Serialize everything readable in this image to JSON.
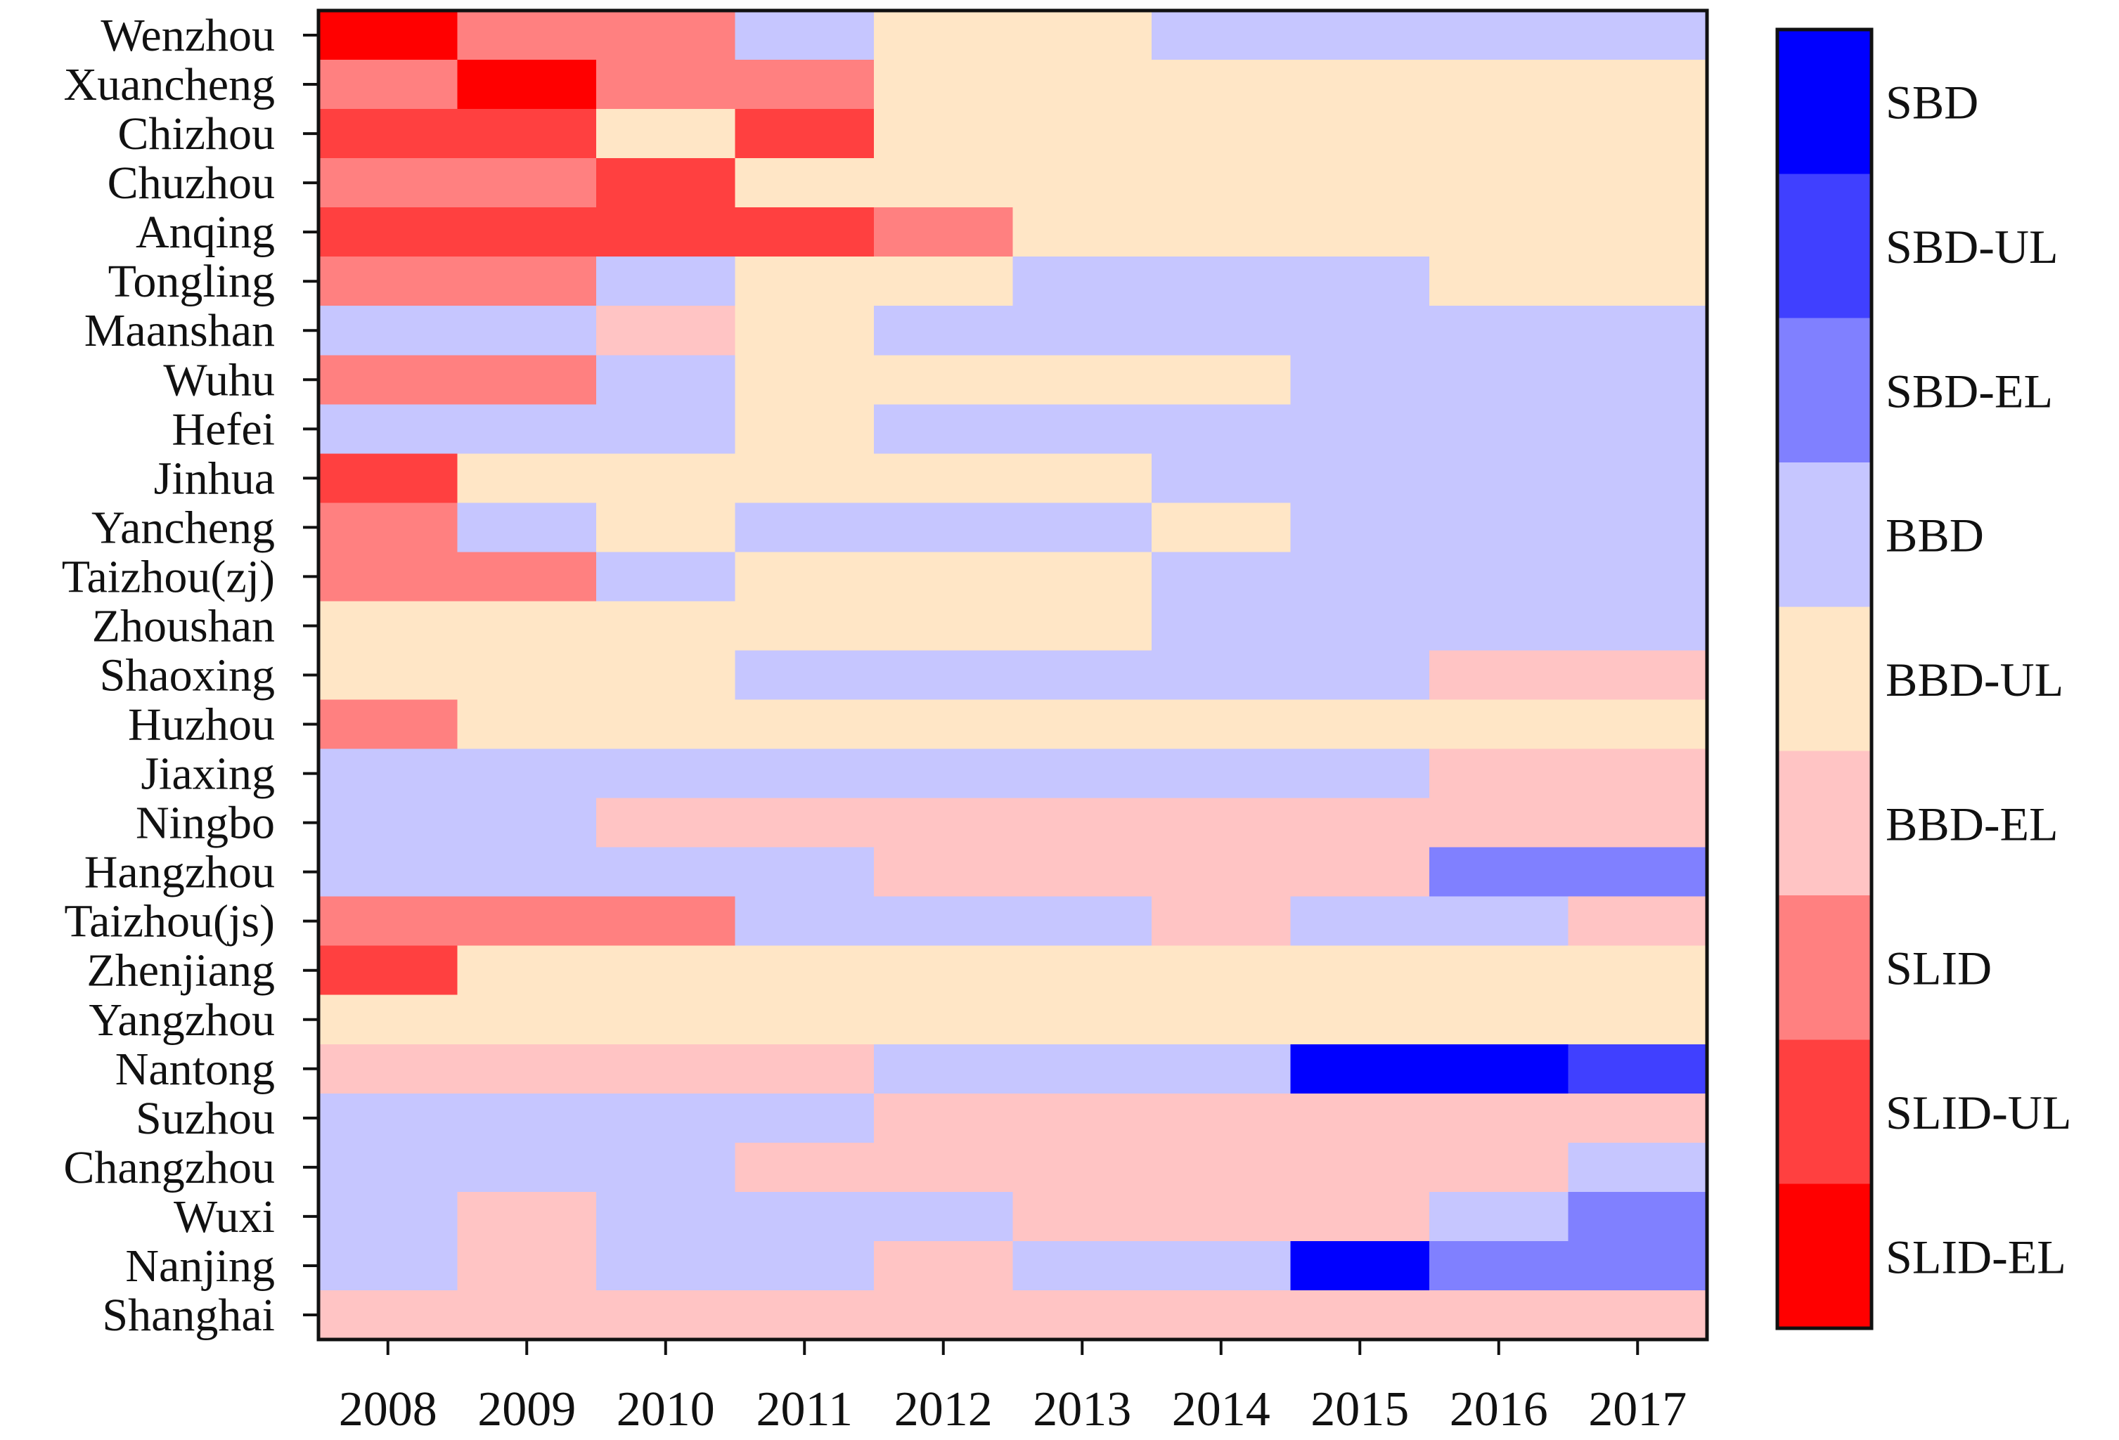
{
  "chart_data": {
    "type": "heatmap",
    "title": "",
    "xlabel": "",
    "ylabel": "",
    "x": [
      "2008",
      "2009",
      "2010",
      "2011",
      "2012",
      "2013",
      "2014",
      "2015",
      "2016",
      "2017"
    ],
    "y": [
      "Wenzhou",
      "Xuancheng",
      "Chizhou",
      "Chuzhou",
      "Anqing",
      "Tongling",
      "Maanshan",
      "Wuhu",
      "Hefei",
      "Jinhua",
      "Yancheng",
      "Taizhou(zj)",
      "Zhoushan",
      "Shaoxing",
      "Huzhou",
      "Jiaxing",
      "Ningbo",
      "Hangzhou",
      "Taizhou(js)",
      "Zhenjiang",
      "Yangzhou",
      "Nantong",
      "Suzhou",
      "Changzhou",
      "Wuxi",
      "Nanjing",
      "Shanghai"
    ],
    "categories": [
      "SBD",
      "SBD-UL",
      "SBD-EL",
      "BBD",
      "BBD-UL",
      "BBD-EL",
      "SLID",
      "SLID-UL",
      "SLID-EL"
    ],
    "colors": {
      "SBD": "#0000ff",
      "SBD-UL": "#4040ff",
      "SBD-EL": "#8080ff",
      "BBD": "#c6c6ff",
      "BBD-UL": "#ffe6c6",
      "BBD-EL": "#ffc4c4",
      "SLID": "#ff8080",
      "SLID-UL": "#ff4040",
      "SLID-EL": "#ff0000"
    },
    "values": [
      [
        "SLID-EL",
        "SLID",
        "SLID",
        "BBD",
        "BBD-UL",
        "BBD-UL",
        "BBD",
        "BBD",
        "BBD",
        "BBD"
      ],
      [
        "SLID",
        "SLID-EL",
        "SLID",
        "SLID",
        "BBD-UL",
        "BBD-UL",
        "BBD-UL",
        "BBD-UL",
        "BBD-UL",
        "BBD-UL"
      ],
      [
        "SLID-UL",
        "SLID-UL",
        "BBD-UL",
        "SLID-UL",
        "BBD-UL",
        "BBD-UL",
        "BBD-UL",
        "BBD-UL",
        "BBD-UL",
        "BBD-UL"
      ],
      [
        "SLID",
        "SLID",
        "SLID-UL",
        "BBD-UL",
        "BBD-UL",
        "BBD-UL",
        "BBD-UL",
        "BBD-UL",
        "BBD-UL",
        "BBD-UL"
      ],
      [
        "SLID-UL",
        "SLID-UL",
        "SLID-UL",
        "SLID-UL",
        "SLID",
        "BBD-UL",
        "BBD-UL",
        "BBD-UL",
        "BBD-UL",
        "BBD-UL"
      ],
      [
        "SLID",
        "SLID",
        "BBD",
        "BBD-UL",
        "BBD-UL",
        "BBD",
        "BBD",
        "BBD",
        "BBD-UL",
        "BBD-UL"
      ],
      [
        "BBD",
        "BBD",
        "BBD-EL",
        "BBD-UL",
        "BBD",
        "BBD",
        "BBD",
        "BBD",
        "BBD",
        "BBD"
      ],
      [
        "SLID",
        "SLID",
        "BBD",
        "BBD-UL",
        "BBD-UL",
        "BBD-UL",
        "BBD-UL",
        "BBD",
        "BBD",
        "BBD"
      ],
      [
        "BBD",
        "BBD",
        "BBD",
        "BBD-UL",
        "BBD",
        "BBD",
        "BBD",
        "BBD",
        "BBD",
        "BBD"
      ],
      [
        "SLID-UL",
        "BBD-UL",
        "BBD-UL",
        "BBD-UL",
        "BBD-UL",
        "BBD-UL",
        "BBD",
        "BBD",
        "BBD",
        "BBD"
      ],
      [
        "SLID",
        "BBD",
        "BBD-UL",
        "BBD",
        "BBD",
        "BBD",
        "BBD-UL",
        "BBD",
        "BBD",
        "BBD"
      ],
      [
        "SLID",
        "SLID",
        "BBD",
        "BBD-UL",
        "BBD-UL",
        "BBD-UL",
        "BBD",
        "BBD",
        "BBD",
        "BBD"
      ],
      [
        "BBD-UL",
        "BBD-UL",
        "BBD-UL",
        "BBD-UL",
        "BBD-UL",
        "BBD-UL",
        "BBD",
        "BBD",
        "BBD",
        "BBD"
      ],
      [
        "BBD-UL",
        "BBD-UL",
        "BBD-UL",
        "BBD",
        "BBD",
        "BBD",
        "BBD",
        "BBD",
        "BBD-EL",
        "BBD-EL"
      ],
      [
        "SLID",
        "BBD-UL",
        "BBD-UL",
        "BBD-UL",
        "BBD-UL",
        "BBD-UL",
        "BBD-UL",
        "BBD-UL",
        "BBD-UL",
        "BBD-UL"
      ],
      [
        "BBD",
        "BBD",
        "BBD",
        "BBD",
        "BBD",
        "BBD",
        "BBD",
        "BBD",
        "BBD-EL",
        "BBD-EL"
      ],
      [
        "BBD",
        "BBD",
        "BBD-EL",
        "BBD-EL",
        "BBD-EL",
        "BBD-EL",
        "BBD-EL",
        "BBD-EL",
        "BBD-EL",
        "BBD-EL"
      ],
      [
        "BBD",
        "BBD",
        "BBD",
        "BBD",
        "BBD-EL",
        "BBD-EL",
        "BBD-EL",
        "BBD-EL",
        "SBD-EL",
        "SBD-EL"
      ],
      [
        "SLID",
        "SLID",
        "SLID",
        "BBD",
        "BBD",
        "BBD",
        "BBD-EL",
        "BBD",
        "BBD",
        "BBD-EL"
      ],
      [
        "SLID-UL",
        "BBD-UL",
        "BBD-UL",
        "BBD-UL",
        "BBD-UL",
        "BBD-UL",
        "BBD-UL",
        "BBD-UL",
        "BBD-UL",
        "BBD-UL"
      ],
      [
        "BBD-UL",
        "BBD-UL",
        "BBD-UL",
        "BBD-UL",
        "BBD-UL",
        "BBD-UL",
        "BBD-UL",
        "BBD-UL",
        "BBD-UL",
        "BBD-UL"
      ],
      [
        "BBD-EL",
        "BBD-EL",
        "BBD-EL",
        "BBD-EL",
        "BBD",
        "BBD",
        "BBD",
        "SBD",
        "SBD",
        "SBD-UL"
      ],
      [
        "BBD",
        "BBD",
        "BBD",
        "BBD",
        "BBD-EL",
        "BBD-EL",
        "BBD-EL",
        "BBD-EL",
        "BBD-EL",
        "BBD-EL"
      ],
      [
        "BBD",
        "BBD",
        "BBD",
        "BBD-EL",
        "BBD-EL",
        "BBD-EL",
        "BBD-EL",
        "BBD-EL",
        "BBD-EL",
        "BBD"
      ],
      [
        "BBD",
        "BBD-EL",
        "BBD",
        "BBD",
        "BBD",
        "BBD-EL",
        "BBD-EL",
        "BBD-EL",
        "BBD",
        "SBD-EL"
      ],
      [
        "BBD",
        "BBD-EL",
        "BBD",
        "BBD",
        "BBD-EL",
        "BBD",
        "BBD",
        "SBD",
        "SBD-EL",
        "SBD-EL"
      ],
      [
        "BBD-EL",
        "BBD-EL",
        "BBD-EL",
        "BBD-EL",
        "BBD-EL",
        "BBD-EL",
        "BBD-EL",
        "BBD-EL",
        "BBD-EL",
        "BBD-EL"
      ]
    ],
    "legend": {
      "position": "right",
      "order_top_to_bottom": [
        "SBD",
        "SBD-UL",
        "SBD-EL",
        "BBD",
        "BBD-UL",
        "BBD-EL",
        "SLID",
        "SLID-UL",
        "SLID-EL"
      ]
    },
    "grid": false
  }
}
